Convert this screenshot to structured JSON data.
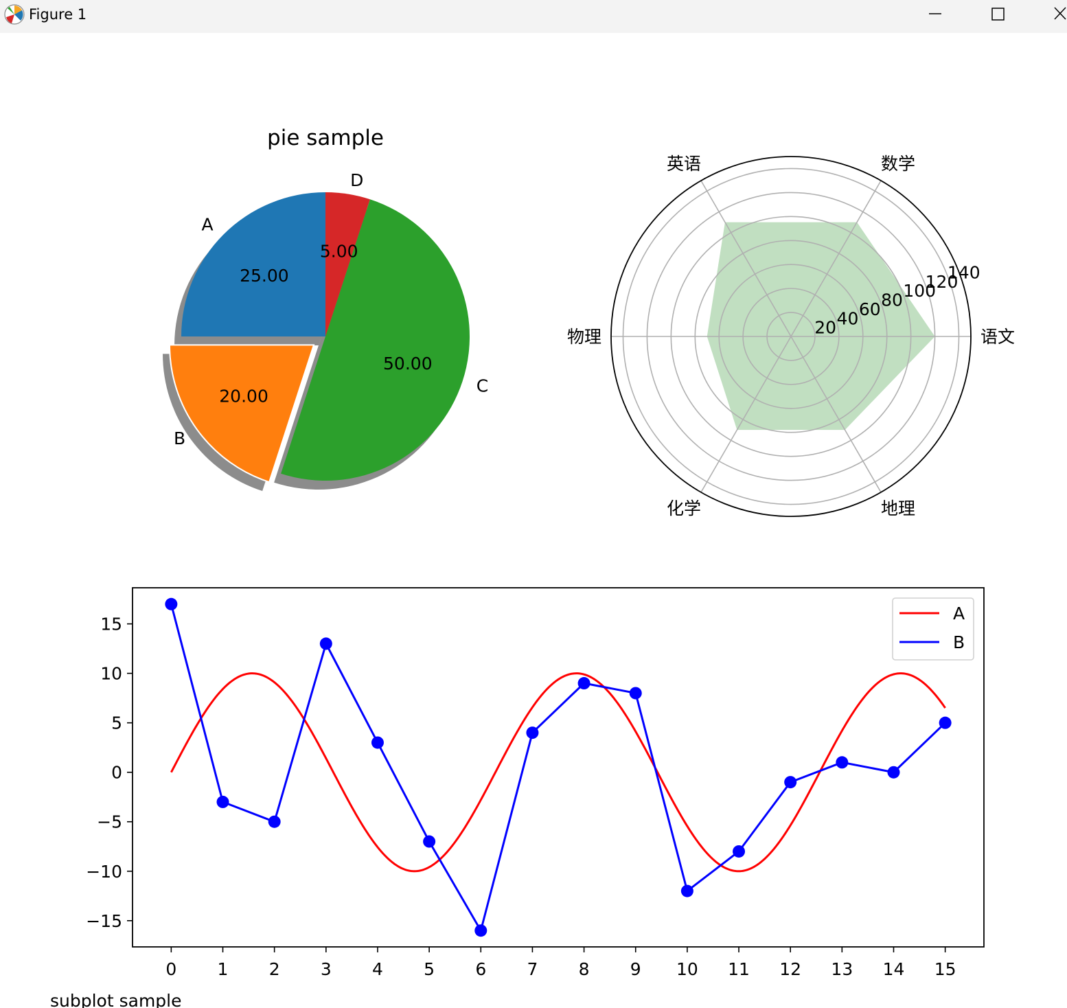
{
  "window": {
    "title": "Figure 1",
    "icons": [
      "matplotlib-app-icon",
      "minimize-icon",
      "maximize-icon",
      "close-icon"
    ]
  },
  "chart_data": [
    {
      "type": "pie",
      "title": "pie sample",
      "labels": [
        "A",
        "B",
        "C",
        "D"
      ],
      "values": [
        25,
        20,
        50,
        5
      ],
      "value_labels": [
        "25.00",
        "20.00",
        "50.00",
        "5.00"
      ],
      "colors": [
        "#1f77b4",
        "#ff7f0e",
        "#2ca02c",
        "#d62728"
      ],
      "explode": [
        0,
        0.1,
        0,
        0
      ],
      "shadow": true,
      "startangle": 90
    },
    {
      "type": "radar",
      "categories": [
        "语文",
        "数学",
        "英语",
        "物理",
        "化学",
        "地理"
      ],
      "values": [
        120,
        110,
        110,
        70,
        90,
        90
      ],
      "rticks": [
        "20",
        "40",
        "60",
        "80",
        "100",
        "120",
        "140"
      ],
      "rlim": [
        0,
        150
      ],
      "fill_color": "#c1dfc1",
      "grid": true
    },
    {
      "type": "line",
      "series": [
        {
          "name": "A",
          "color": "#ff0000",
          "kind": "curve",
          "x_range": [
            0,
            15
          ],
          "amplitude": 10
        },
        {
          "name": "B",
          "color": "#0000ff",
          "kind": "line-marker",
          "x": [
            0,
            1,
            2,
            3,
            4,
            5,
            6,
            7,
            8,
            9,
            10,
            11,
            12,
            13,
            14,
            15
          ],
          "values": [
            17,
            -3,
            -5,
            13,
            3,
            -7,
            -16,
            4,
            9,
            8,
            -12,
            -8,
            -1,
            1,
            0,
            5
          ]
        }
      ],
      "xticks": [
        "0",
        "1",
        "2",
        "3",
        "4",
        "5",
        "6",
        "7",
        "8",
        "9",
        "10",
        "11",
        "12",
        "13",
        "14",
        "15"
      ],
      "yticks": [
        "15",
        "10",
        "5",
        "0",
        "−5",
        "−10",
        "−15"
      ],
      "ytick_values": [
        15,
        10,
        5,
        0,
        -5,
        -10,
        -15
      ],
      "xlim": [
        -0.75,
        15.75
      ],
      "ylim": [
        -17.65,
        18.65
      ],
      "legend_position": "upper right",
      "caption": "subplot sample"
    }
  ]
}
